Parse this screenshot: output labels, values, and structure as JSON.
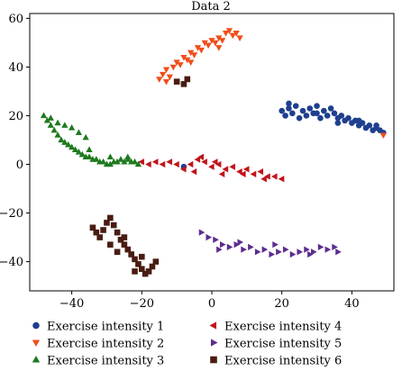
{
  "chart_data": {
    "type": "scatter",
    "title": "Data 2",
    "xlabel": "",
    "ylabel": "",
    "xlim": [
      -52,
      52
    ],
    "ylim": [
      -52,
      62
    ],
    "xticks": [
      -40,
      -20,
      0,
      20,
      40
    ],
    "yticks": [
      -40,
      -20,
      0,
      20,
      40,
      60
    ],
    "tick_labels": {
      "x": [
        "−40",
        "−20",
        "0",
        "20",
        "40"
      ],
      "y": [
        "−40",
        "−20",
        "0",
        "20",
        "40",
        "60"
      ]
    },
    "grid": false,
    "legend_position": "bottom",
    "series": [
      {
        "name": "Exercise intensity 1",
        "marker": "circle",
        "color": "#1f3f8f",
        "points": [
          [
            20,
            22
          ],
          [
            21,
            20
          ],
          [
            22,
            23
          ],
          [
            23,
            21
          ],
          [
            24,
            24
          ],
          [
            25,
            19
          ],
          [
            26,
            22
          ],
          [
            27,
            20
          ],
          [
            28,
            23
          ],
          [
            29,
            21
          ],
          [
            30,
            24
          ],
          [
            31,
            19
          ],
          [
            32,
            22
          ],
          [
            33,
            20
          ],
          [
            34,
            23
          ],
          [
            35,
            21
          ],
          [
            36,
            19
          ],
          [
            37,
            20
          ],
          [
            38,
            18
          ],
          [
            39,
            19
          ],
          [
            40,
            17
          ],
          [
            41,
            18
          ],
          [
            42,
            16
          ],
          [
            43,
            17
          ],
          [
            44,
            15
          ],
          [
            45,
            16
          ],
          [
            46,
            14
          ],
          [
            47,
            15
          ],
          [
            48,
            14
          ],
          [
            49,
            13
          ],
          [
            22,
            25
          ],
          [
            30,
            21
          ],
          [
            36,
            17
          ],
          [
            42,
            18
          ],
          [
            47,
            16
          ],
          [
            -8,
            -1
          ]
        ]
      },
      {
        "name": "Exercise intensity 2",
        "marker": "triangle-down",
        "color": "#f04e1a",
        "points": [
          [
            -15,
            35
          ],
          [
            -14,
            37
          ],
          [
            -13,
            39
          ],
          [
            -12,
            36
          ],
          [
            -11,
            40
          ],
          [
            -10,
            42
          ],
          [
            -9,
            41
          ],
          [
            -8,
            44
          ],
          [
            -7,
            43
          ],
          [
            -6,
            46
          ],
          [
            -5,
            45
          ],
          [
            -4,
            48
          ],
          [
            -3,
            47
          ],
          [
            -2,
            50
          ],
          [
            -1,
            49
          ],
          [
            0,
            51
          ],
          [
            1,
            50
          ],
          [
            2,
            52
          ],
          [
            3,
            51
          ],
          [
            4,
            54
          ],
          [
            5,
            55
          ],
          [
            6,
            53
          ],
          [
            7,
            54
          ],
          [
            8,
            52
          ],
          [
            -13,
            34
          ],
          [
            -6,
            42
          ],
          [
            2,
            48
          ],
          [
            49,
            12
          ]
        ]
      },
      {
        "name": "Exercise intensity 3",
        "marker": "triangle-up",
        "color": "#1e7a1e",
        "points": [
          [
            -48,
            20
          ],
          [
            -47,
            18
          ],
          [
            -46,
            16
          ],
          [
            -45,
            14
          ],
          [
            -44,
            12
          ],
          [
            -43,
            10
          ],
          [
            -42,
            9
          ],
          [
            -41,
            8
          ],
          [
            -40,
            7
          ],
          [
            -39,
            6
          ],
          [
            -38,
            5
          ],
          [
            -37,
            4
          ],
          [
            -36,
            3
          ],
          [
            -35,
            3
          ],
          [
            -34,
            2
          ],
          [
            -33,
            2
          ],
          [
            -32,
            1
          ],
          [
            -31,
            1
          ],
          [
            -30,
            0
          ],
          [
            -29,
            0
          ],
          [
            -28,
            1
          ],
          [
            -27,
            1
          ],
          [
            -26,
            2
          ],
          [
            -25,
            1
          ],
          [
            -24,
            2
          ],
          [
            -23,
            1
          ],
          [
            -22,
            1
          ],
          [
            -21,
            0
          ],
          [
            -46,
            19
          ],
          [
            -44,
            17
          ],
          [
            -42,
            16
          ],
          [
            -40,
            15
          ],
          [
            -38,
            13
          ],
          [
            -36,
            11
          ],
          [
            -35,
            6
          ],
          [
            -29,
            3
          ],
          [
            -24,
            3
          ]
        ]
      },
      {
        "name": "Exercise intensity 4",
        "marker": "triangle-left",
        "color": "#c0141a",
        "points": [
          [
            -20,
            1
          ],
          [
            -18,
            0
          ],
          [
            -16,
            1
          ],
          [
            -14,
            0
          ],
          [
            -12,
            1
          ],
          [
            -10,
            0
          ],
          [
            -8,
            -2
          ],
          [
            -6,
            0
          ],
          [
            -4,
            2
          ],
          [
            -2,
            1
          ],
          [
            0,
            -1
          ],
          [
            2,
            0
          ],
          [
            4,
            -2
          ],
          [
            6,
            -1
          ],
          [
            8,
            -3
          ],
          [
            10,
            -2
          ],
          [
            12,
            -4
          ],
          [
            14,
            -3
          ],
          [
            16,
            -5
          ],
          [
            18,
            -5
          ],
          [
            20,
            -6
          ],
          [
            -5,
            -3
          ],
          [
            3,
            -4
          ],
          [
            9,
            -4
          ],
          [
            15,
            -6
          ],
          [
            -3,
            3
          ],
          [
            1,
            1
          ]
        ]
      },
      {
        "name": "Exercise intensity 5",
        "marker": "triangle-right",
        "color": "#5b2d8e",
        "points": [
          [
            -3,
            -28
          ],
          [
            -1,
            -30
          ],
          [
            1,
            -31
          ],
          [
            3,
            -33
          ],
          [
            5,
            -34
          ],
          [
            7,
            -33
          ],
          [
            9,
            -35
          ],
          [
            11,
            -34
          ],
          [
            13,
            -36
          ],
          [
            15,
            -35
          ],
          [
            17,
            -37
          ],
          [
            19,
            -36
          ],
          [
            21,
            -35
          ],
          [
            23,
            -37
          ],
          [
            25,
            -36
          ],
          [
            27,
            -35
          ],
          [
            29,
            -36
          ],
          [
            31,
            -34
          ],
          [
            33,
            -35
          ],
          [
            35,
            -34
          ],
          [
            36,
            -36
          ],
          [
            2,
            -35
          ],
          [
            8,
            -32
          ],
          [
            18,
            -33
          ],
          [
            28,
            -37
          ]
        ]
      },
      {
        "name": "Exercise intensity 6",
        "marker": "square",
        "color": "#4a1c12",
        "points": [
          [
            -34,
            -26
          ],
          [
            -33,
            -28
          ],
          [
            -32,
            -30
          ],
          [
            -31,
            -27
          ],
          [
            -30,
            -24
          ],
          [
            -29,
            -22
          ],
          [
            -28,
            -25
          ],
          [
            -27,
            -28
          ],
          [
            -26,
            -31
          ],
          [
            -25,
            -33
          ],
          [
            -24,
            -35
          ],
          [
            -23,
            -37
          ],
          [
            -22,
            -39
          ],
          [
            -21,
            -41
          ],
          [
            -20,
            -43
          ],
          [
            -19,
            -45
          ],
          [
            -18,
            -44
          ],
          [
            -17,
            -42
          ],
          [
            -16,
            -40
          ],
          [
            -29,
            -33
          ],
          [
            -27,
            -36
          ],
          [
            -25,
            -30
          ],
          [
            -22,
            -44
          ],
          [
            -20,
            -38
          ],
          [
            -10,
            34
          ],
          [
            -8,
            33
          ],
          [
            -7,
            35
          ]
        ]
      }
    ]
  }
}
